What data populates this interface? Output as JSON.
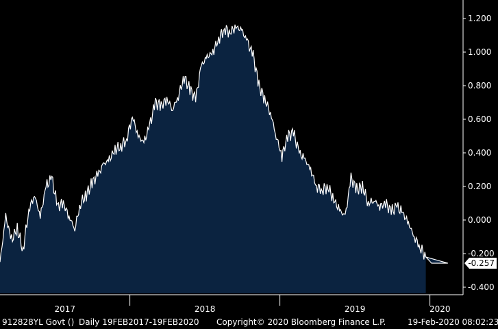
{
  "chart_data": {
    "type": "area",
    "title": "",
    "xlabel": "",
    "ylabel": "",
    "x_range": [
      "2017-02-19",
      "2020-02-19"
    ],
    "ylim": [
      -0.45,
      1.25
    ],
    "y_ticks": [
      "1.200",
      "1.000",
      "0.800",
      "0.600",
      "0.400",
      "0.200",
      "0.000",
      "-0.200",
      "-0.400"
    ],
    "x_ticks": [
      "2017",
      "2018",
      "2019",
      "2020"
    ],
    "grid": false,
    "last_value_label": "-0.257",
    "colors": {
      "fill": "#0b2340",
      "line": "#ffffff",
      "background": "#000000",
      "last_box": "#ffffff"
    },
    "series": [
      {
        "x": [
          "2017-02-19",
          "2017-03-05",
          "2017-03-19",
          "2017-04-02",
          "2017-04-16",
          "2017-04-30",
          "2017-05-14",
          "2017-05-28",
          "2017-06-11",
          "2017-06-25",
          "2017-07-09",
          "2017-07-23",
          "2017-08-06",
          "2017-08-20",
          "2017-09-03",
          "2017-09-17",
          "2017-10-01",
          "2017-10-15",
          "2017-10-29",
          "2017-11-12",
          "2017-11-26",
          "2017-12-10",
          "2017-12-24",
          "2018-01-07",
          "2018-01-21",
          "2018-02-04",
          "2018-02-18",
          "2018-03-04",
          "2018-03-18",
          "2018-04-01",
          "2018-04-15",
          "2018-04-29",
          "2018-05-13",
          "2018-05-27",
          "2018-06-10",
          "2018-06-24",
          "2018-07-08",
          "2018-07-22",
          "2018-08-05",
          "2018-08-19",
          "2018-09-02",
          "2018-09-16",
          "2018-09-30",
          "2018-10-14",
          "2018-10-28",
          "2018-11-11",
          "2018-11-25",
          "2018-12-09",
          "2018-12-23",
          "2019-01-06",
          "2019-01-20",
          "2019-02-03",
          "2019-02-17",
          "2019-03-03",
          "2019-03-17",
          "2019-03-31",
          "2019-04-14",
          "2019-04-28",
          "2019-05-12",
          "2019-05-26",
          "2019-06-09",
          "2019-06-23",
          "2019-07-07",
          "2019-07-21",
          "2019-08-04",
          "2019-08-18",
          "2019-09-01",
          "2019-09-15",
          "2019-09-29",
          "2019-10-13",
          "2019-10-27",
          "2019-11-10",
          "2019-11-24",
          "2019-12-08",
          "2019-12-22",
          "2020-01-05",
          "2020-01-19",
          "2020-02-02",
          "2020-02-16"
        ],
        "y": [
          -0.25,
          0.02,
          -0.12,
          -0.05,
          -0.18,
          0.06,
          0.15,
          0.02,
          0.2,
          0.25,
          0.08,
          0.1,
          0.02,
          -0.05,
          0.1,
          0.15,
          0.22,
          0.27,
          0.33,
          0.36,
          0.42,
          0.44,
          0.48,
          0.62,
          0.5,
          0.46,
          0.56,
          0.7,
          0.68,
          0.72,
          0.66,
          0.74,
          0.85,
          0.78,
          0.72,
          0.92,
          0.97,
          1.0,
          1.08,
          1.14,
          1.12,
          1.15,
          1.13,
          1.06,
          0.98,
          0.8,
          0.72,
          0.64,
          0.5,
          0.38,
          0.5,
          0.52,
          0.4,
          0.36,
          0.3,
          0.2,
          0.18,
          0.2,
          0.12,
          0.06,
          0.02,
          0.25,
          0.18,
          0.2,
          0.1,
          0.12,
          0.08,
          0.1,
          0.05,
          0.08,
          0.04,
          -0.02,
          -0.1,
          -0.16,
          -0.22,
          -0.257,
          -0.257,
          -0.257,
          -0.257
        ]
      }
    ]
  },
  "footer": {
    "ticker": "912828YL Govt ()",
    "range": "Daily 19FEB2017-19FEB2020",
    "copyright": "Copyright© 2020 Bloomberg Finance L.P.",
    "timestamp": "19-Feb-2020 08:02:23"
  }
}
